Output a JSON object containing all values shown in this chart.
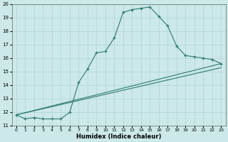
{
  "title": "",
  "xlabel": "Humidex (Indice chaleur)",
  "ylabel": "",
  "bg_color": "#cce8e8",
  "grid_color": "#afd4d4",
  "line_color": "#2d7a6e",
  "xlim": [
    -0.5,
    23.5
  ],
  "ylim": [
    11,
    20
  ],
  "xticks": [
    0,
    1,
    2,
    3,
    4,
    5,
    6,
    7,
    8,
    9,
    10,
    11,
    12,
    13,
    14,
    15,
    16,
    17,
    18,
    19,
    20,
    21,
    22,
    23
  ],
  "yticks": [
    11,
    12,
    13,
    14,
    15,
    16,
    17,
    18,
    19,
    20
  ],
  "line1_x": [
    0,
    1,
    2,
    3,
    4,
    5,
    6,
    7,
    8,
    9,
    10,
    11,
    12,
    13,
    14,
    15,
    16,
    17,
    18,
    19,
    20,
    21,
    22,
    23
  ],
  "line1_y": [
    11.8,
    11.5,
    11.6,
    11.5,
    11.5,
    11.5,
    12.0,
    14.2,
    15.2,
    16.4,
    16.5,
    17.5,
    19.4,
    19.6,
    19.7,
    19.8,
    19.1,
    18.4,
    16.9,
    16.2,
    16.1,
    16.0,
    15.9,
    15.6
  ],
  "line2_y_end": 15.3,
  "line3_y_end": 15.6,
  "line_start_x": 0,
  "line_start_y": 11.8,
  "line_end_x": 23
}
